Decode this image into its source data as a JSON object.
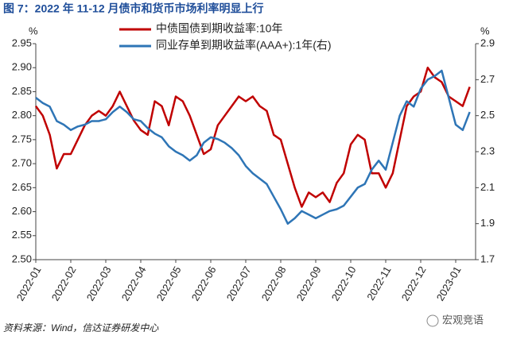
{
  "chart_data": {
    "type": "line",
    "title": "图 7：2022 年 11-12 月债市和货币市场利率明显上行",
    "ylabel": "%",
    "y2label": "%",
    "source": "资料来源：Wind，信达证券研发中心",
    "watermark": "宏观竞语",
    "categories": [
      "2022-01",
      null,
      null,
      null,
      null,
      "2022-02",
      null,
      null,
      null,
      null,
      "2022-03",
      null,
      null,
      null,
      null,
      "2022-04",
      null,
      null,
      null,
      null,
      "2022-05",
      null,
      null,
      null,
      null,
      "2022-06",
      null,
      null,
      null,
      null,
      "2022-07",
      null,
      null,
      null,
      null,
      "2022-08",
      null,
      null,
      null,
      null,
      "2022-09",
      null,
      null,
      null,
      null,
      "2022-10",
      null,
      null,
      null,
      null,
      "2022-11",
      null,
      null,
      null,
      null,
      "2022-12",
      null,
      null,
      null,
      null,
      "2023-01",
      null,
      null
    ],
    "series": [
      {
        "name": "中债国债到期收益率:10年",
        "color": "#c00000",
        "values": [
          2.82,
          2.8,
          2.76,
          2.69,
          2.72,
          2.72,
          2.75,
          2.78,
          2.8,
          2.81,
          2.8,
          2.82,
          2.85,
          2.82,
          2.79,
          2.77,
          2.76,
          2.83,
          2.82,
          2.78,
          2.84,
          2.83,
          2.8,
          2.76,
          2.72,
          2.73,
          2.78,
          2.8,
          2.82,
          2.84,
          2.83,
          2.84,
          2.82,
          2.81,
          2.76,
          2.75,
          2.7,
          2.65,
          2.61,
          2.64,
          2.63,
          2.64,
          2.62,
          2.66,
          2.68,
          2.74,
          2.76,
          2.75,
          2.68,
          2.68,
          2.65,
          2.68,
          2.75,
          2.82,
          2.84,
          2.85,
          2.9,
          2.88,
          2.87,
          2.84,
          2.83,
          2.82,
          2.86
        ]
      },
      {
        "name": "同业存单到期收益率(AAA+):1年(右)",
        "color": "#2e75b6",
        "axis": "y2",
        "values": [
          2.6,
          2.57,
          2.55,
          2.47,
          2.45,
          2.42,
          2.44,
          2.45,
          2.47,
          2.47,
          2.48,
          2.52,
          2.55,
          2.52,
          2.48,
          2.47,
          2.43,
          2.4,
          2.38,
          2.33,
          2.3,
          2.28,
          2.25,
          2.28,
          2.35,
          2.38,
          2.37,
          2.35,
          2.32,
          2.28,
          2.22,
          2.18,
          2.15,
          2.12,
          2.05,
          1.98,
          1.9,
          1.93,
          1.97,
          1.95,
          1.93,
          1.95,
          1.97,
          1.98,
          2.0,
          2.05,
          2.1,
          2.12,
          2.2,
          2.25,
          2.2,
          2.35,
          2.5,
          2.58,
          2.55,
          2.65,
          2.7,
          2.72,
          2.75,
          2.6,
          2.45,
          2.42,
          2.52
        ]
      }
    ],
    "ylim": [
      2.5,
      2.95
    ],
    "yticks": [
      {
        "value": 2.5,
        "label": "2.50"
      },
      2.55,
      {
        "value": 2.6,
        "label": "2.60"
      },
      2.65,
      {
        "value": 2.7,
        "label": "2.70"
      },
      2.75,
      {
        "value": 2.8,
        "label": "2.80"
      },
      2.85,
      {
        "value": 2.9,
        "label": "2.90"
      },
      2.95
    ],
    "y2lim": [
      1.7,
      2.9
    ],
    "y2ticks": [
      1.7,
      1.9,
      2.1,
      2.3,
      2.5,
      2.7,
      2.9
    ],
    "grid": false
  }
}
